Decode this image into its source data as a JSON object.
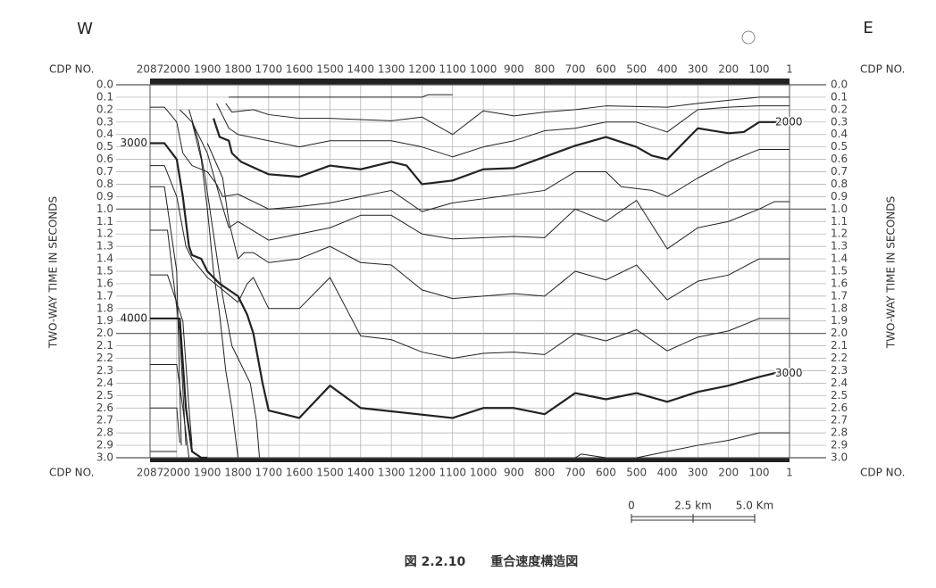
{
  "chart_data": {
    "type": "line",
    "west": "W",
    "east": "E",
    "x_label": "CDP NO.",
    "y_label": "TWO-WAY TIME IN SECONDS",
    "caption": "図 2.2.10　　重合速度構造図",
    "scale_bar": [
      "0",
      "2.5 km",
      "5.0 Km"
    ],
    "xlim": [
      2087,
      1
    ],
    "xticks": [
      2087,
      2000,
      1900,
      1800,
      1700,
      1600,
      1500,
      1400,
      1300,
      1200,
      1100,
      1000,
      900,
      800,
      700,
      600,
      500,
      400,
      300,
      200,
      100,
      1
    ],
    "ylim": [
      0,
      3
    ],
    "yticks": [
      {
        "value": 0,
        "label": "0.0"
      },
      {
        "value": 0.1,
        "label": "0.1"
      },
      {
        "value": 0.2,
        "label": "0.2"
      },
      {
        "value": 0.3,
        "label": "0.3"
      },
      {
        "value": 0.4,
        "label": "0.4"
      },
      {
        "value": 0.5,
        "label": "0.5"
      },
      {
        "value": 0.6,
        "label": "0.6"
      },
      {
        "value": 0.7,
        "label": "0.7"
      },
      {
        "value": 0.8,
        "label": "0.8"
      },
      {
        "value": 0.9,
        "label": "0.9"
      },
      {
        "value": 1,
        "label": "1.0"
      },
      {
        "value": 1.1,
        "label": "1.1"
      },
      {
        "value": 1.2,
        "label": "1.2"
      },
      {
        "value": 1.3,
        "label": "1.3"
      },
      {
        "value": 1.4,
        "label": "1.4"
      },
      {
        "value": 1.5,
        "label": "1.5"
      },
      {
        "value": 1.6,
        "label": "1.6"
      },
      {
        "value": 1.7,
        "label": "1.7"
      },
      {
        "value": 1.8,
        "label": "1.8"
      },
      {
        "value": 1.9,
        "label": "1.9"
      },
      {
        "value": 2,
        "label": "2.0"
      },
      {
        "value": 2.1,
        "label": "2.1"
      },
      {
        "value": 2.2,
        "label": "2.2"
      },
      {
        "value": 2.3,
        "label": "2.3"
      },
      {
        "value": 2.4,
        "label": "2.4"
      },
      {
        "value": 2.5,
        "label": "2.5"
      },
      {
        "value": 2.6,
        "label": "2.6"
      },
      {
        "value": 2.7,
        "label": "2.7"
      },
      {
        "value": 2.8,
        "label": "2.8"
      },
      {
        "value": 2.9,
        "label": "2.9"
      },
      {
        "value": 3,
        "label": "3.0"
      }
    ],
    "y_inverted": true,
    "grid": true,
    "series": [
      {
        "color": "#222",
        "width": 1,
        "x": [
          1830,
          1200,
          1180,
          1100
        ],
        "values": [
          0.1,
          0.1,
          0.08,
          0.08
        ]
      },
      {
        "color": "#222",
        "width": 1,
        "x": [
          1840,
          1820,
          1750,
          1700,
          1600,
          1500,
          1300,
          1200,
          1100,
          1000,
          900,
          800,
          700,
          600,
          400,
          300,
          100,
          1
        ],
        "values": [
          0.15,
          0.22,
          0.2,
          0.24,
          0.27,
          0.27,
          0.29,
          0.26,
          0.4,
          0.21,
          0.25,
          0.22,
          0.2,
          0.17,
          0.18,
          0.15,
          0.1,
          0.1
        ]
      },
      {
        "color": "#222",
        "width": 1,
        "x": [
          1870,
          1830,
          1800,
          1700,
          1600,
          1500,
          1300,
          1200,
          1100,
          1000,
          900,
          800,
          700,
          600,
          500,
          400,
          300,
          200,
          100,
          1
        ],
        "values": [
          0.15,
          0.35,
          0.4,
          0.45,
          0.5,
          0.45,
          0.45,
          0.5,
          0.58,
          0.5,
          0.45,
          0.37,
          0.35,
          0.3,
          0.3,
          0.38,
          0.2,
          0.18,
          0.17,
          0.17
        ]
      },
      {
        "color": "#222",
        "width": 2.2,
        "end_label": "2000",
        "x": [
          1880,
          1860,
          1830,
          1820,
          1790,
          1700,
          1600,
          1500,
          1400,
          1300,
          1250,
          1200,
          1100,
          1000,
          900,
          800,
          700,
          600,
          500,
          450,
          400,
          300,
          250,
          200,
          150,
          100,
          1
        ],
        "values": [
          0.27,
          0.42,
          0.45,
          0.55,
          0.62,
          0.72,
          0.74,
          0.65,
          0.68,
          0.62,
          0.65,
          0.8,
          0.77,
          0.68,
          0.67,
          0.58,
          0.49,
          0.42,
          0.5,
          0.57,
          0.6,
          0.35,
          0.37,
          0.39,
          0.38,
          0.3,
          0.3
        ]
      },
      {
        "color": "#222",
        "width": 1,
        "x": [
          2087,
          2040,
          2000,
          1980,
          1950,
          1900,
          1870,
          1850,
          1800,
          1700,
          1600,
          1500,
          1400,
          1300,
          1200,
          1100,
          800,
          700,
          600,
          550,
          450,
          400,
          300,
          200,
          100,
          1
        ],
        "values": [
          0.18,
          0.18,
          0.3,
          0.55,
          0.65,
          0.7,
          0.8,
          0.9,
          0.88,
          1.0,
          0.98,
          0.95,
          0.9,
          0.85,
          1.02,
          0.95,
          0.85,
          0.7,
          0.7,
          0.82,
          0.85,
          0.9,
          0.75,
          0.62,
          0.52,
          0.52
        ]
      },
      {
        "color": "#222",
        "width": 1,
        "x": [
          1950,
          1900,
          1860,
          1830,
          1800,
          1700,
          1600,
          1500,
          1400,
          1300,
          1200,
          1100,
          900,
          800,
          700,
          600,
          500,
          400,
          300,
          200,
          100,
          50,
          1
        ],
        "values": [
          0.3,
          0.55,
          0.9,
          1.15,
          1.1,
          1.25,
          1.2,
          1.15,
          1.05,
          1.05,
          1.2,
          1.24,
          1.22,
          1.23,
          1.0,
          1.1,
          0.93,
          1.32,
          1.15,
          1.1,
          1.0,
          0.94,
          0.94
        ]
      },
      {
        "color": "#222",
        "width": 1,
        "x": [
          1900,
          1850,
          1830,
          1800,
          1780,
          1750,
          1700,
          1600,
          1500,
          1400,
          1300,
          1200,
          1100,
          1000,
          900,
          800,
          700,
          600,
          500,
          400,
          300,
          200,
          100,
          1
        ],
        "values": [
          0.47,
          0.75,
          1.1,
          1.4,
          1.35,
          1.35,
          1.43,
          1.4,
          1.3,
          1.43,
          1.45,
          1.65,
          1.72,
          1.7,
          1.68,
          1.7,
          1.5,
          1.57,
          1.45,
          1.73,
          1.58,
          1.53,
          1.4,
          1.4
        ]
      },
      {
        "color": "#222",
        "width": 1,
        "x": [
          2087,
          2040,
          2000,
          1970,
          1950,
          1900,
          1850,
          1800,
          1770,
          1750,
          1700,
          1600,
          1500,
          1400,
          1300,
          1200,
          1100,
          1000,
          900,
          800,
          700,
          600,
          500,
          400,
          300,
          200,
          100,
          1
        ],
        "values": [
          0.65,
          0.65,
          0.9,
          1.3,
          1.4,
          1.55,
          1.65,
          1.75,
          1.6,
          1.55,
          1.8,
          1.8,
          1.55,
          2.02,
          2.05,
          2.15,
          2.2,
          2.16,
          2.15,
          2.17,
          2.0,
          2.06,
          1.97,
          2.14,
          2.03,
          1.98,
          1.88,
          1.88
        ]
      },
      {
        "color": "#222",
        "width": 2.2,
        "start_label": "3000",
        "end_label": "3000",
        "x": [
          2087,
          2040,
          2000,
          1980,
          1960,
          1950,
          1920,
          1900,
          1860,
          1800,
          1770,
          1750,
          1720,
          1700,
          1600,
          1500,
          1400,
          1100,
          1000,
          900,
          800,
          700,
          600,
          500,
          400,
          300,
          200,
          100,
          50,
          1
        ],
        "values": [
          0.47,
          0.47,
          0.6,
          0.9,
          1.3,
          1.37,
          1.4,
          1.5,
          1.6,
          1.7,
          1.85,
          2.0,
          2.4,
          2.62,
          2.68,
          2.42,
          2.6,
          2.68,
          2.6,
          2.6,
          2.65,
          2.48,
          2.53,
          2.48,
          2.55,
          2.47,
          2.42,
          2.35,
          2.32,
          2.32
        ]
      },
      {
        "color": "#222",
        "width": 1,
        "x": [
          1990,
          1950,
          1920,
          1900,
          1880,
          1860,
          1840,
          1820,
          1800
        ],
        "values": [
          0.2,
          0.3,
          0.6,
          1.0,
          1.5,
          1.85,
          2.3,
          2.6,
          3.0
        ]
      },
      {
        "color": "#222",
        "width": 1,
        "x": [
          1960,
          1930,
          1910,
          1880,
          1850,
          1820,
          1780,
          1760,
          1740,
          1730
        ],
        "values": [
          0.2,
          0.45,
          0.7,
          1.2,
          1.7,
          2.1,
          2.3,
          2.4,
          2.7,
          3.0
        ]
      },
      {
        "color": "#222",
        "width": 1,
        "x": [
          2087,
          2040,
          2000,
          1985
        ],
        "values": [
          0.82,
          0.82,
          1.5,
          2.9
        ]
      },
      {
        "color": "#222",
        "width": 1,
        "x": [
          2087,
          2030,
          1990,
          1970
        ],
        "values": [
          1.17,
          1.17,
          2.0,
          2.9
        ]
      },
      {
        "color": "#222",
        "width": 1,
        "x": [
          2087,
          2030,
          1980,
          1960,
          1950
        ],
        "values": [
          1.53,
          1.53,
          1.9,
          2.6,
          2.9
        ]
      },
      {
        "color": "#222",
        "width": 2.2,
        "start_label": "4000",
        "x": [
          2087,
          1990,
          1970,
          1950,
          1920,
          1900
        ],
        "values": [
          1.88,
          1.88,
          2.6,
          2.95,
          3.0,
          3.0
        ]
      },
      {
        "color": "#222",
        "width": 1,
        "x": [
          2087,
          2000,
          1980,
          1960
        ],
        "values": [
          2.25,
          2.25,
          2.6,
          3.0
        ]
      },
      {
        "color": "#222",
        "width": 1,
        "x": [
          2087,
          2000,
          1990
        ],
        "values": [
          2.6,
          2.6,
          2.88
        ]
      },
      {
        "color": "#222",
        "width": 1,
        "x": [
          2087,
          2000
        ],
        "values": [
          2.95,
          2.95
        ]
      },
      {
        "color": "#222",
        "width": 1,
        "x": [
          700,
          680,
          600
        ],
        "values": [
          3.0,
          2.97,
          3.0
        ]
      },
      {
        "color": "#222",
        "width": 1,
        "x": [
          500,
          400,
          300,
          200,
          100,
          1
        ],
        "values": [
          3.0,
          2.95,
          2.9,
          2.86,
          2.8,
          2.8
        ]
      }
    ]
  }
}
